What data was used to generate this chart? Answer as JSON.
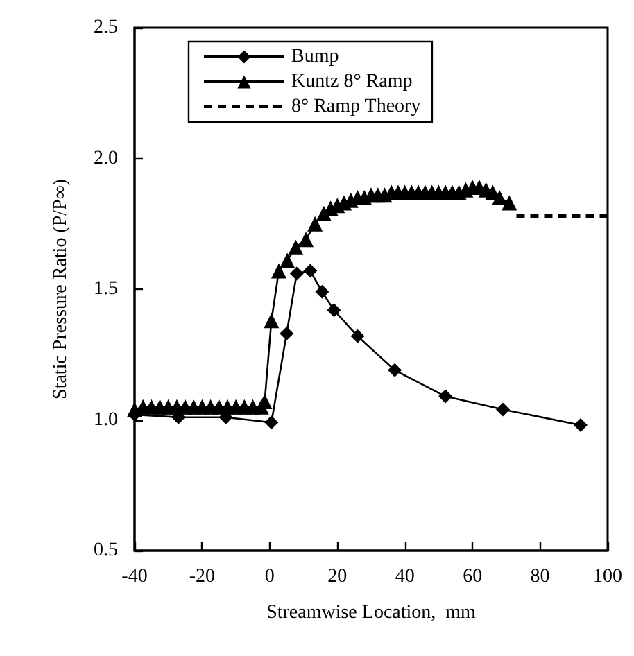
{
  "chart_data": {
    "type": "line",
    "xlabel": "Streamwise Location,  mm",
    "ylabel": "Static Pressure Ratio (P/P∞)",
    "xlim": [
      -40,
      100
    ],
    "xticks": [
      -40,
      -20,
      0,
      20,
      40,
      60,
      80,
      100
    ],
    "ylim": [
      0.5,
      2.5
    ],
    "yticks": [
      0.5,
      {
        "value": 1,
        "label": "1.0"
      },
      1.5,
      {
        "value": 2,
        "label": "2.0"
      },
      2.5
    ],
    "grid": false,
    "legend": "top",
    "series": [
      {
        "name": "Bump",
        "color": "#000000",
        "marker": "diamond",
        "line_style": "solid",
        "x": [
          -40,
          -27,
          -13,
          0.5,
          5,
          8,
          12,
          15.5,
          19,
          26,
          37,
          52,
          69,
          92
        ],
        "values": [
          1.02,
          1.01,
          1.01,
          0.99,
          1.33,
          1.56,
          1.57,
          1.49,
          1.42,
          1.32,
          1.19,
          1.09,
          1.04,
          0.98
        ]
      },
      {
        "name": "Kuntz 8° Ramp",
        "color": "#000000",
        "marker": "triangle",
        "line_style": "solid",
        "x": [
          -40,
          -37.5,
          -35,
          -32.5,
          -30,
          -27.5,
          -25,
          -22.5,
          -20,
          -17.5,
          -15,
          -12.5,
          -10,
          -7.5,
          -5,
          -2.5,
          -1.5,
          0.5,
          2.7,
          5.2,
          7.7,
          10.7,
          13.4,
          16,
          18,
          20,
          22,
          24,
          26,
          28,
          30,
          32,
          34,
          36,
          38,
          40,
          42,
          44,
          46,
          48,
          50,
          52,
          54,
          56,
          58,
          60,
          62,
          64,
          66,
          68,
          70.9
        ],
        "values": [
          1.04,
          1.05,
          1.05,
          1.05,
          1.05,
          1.05,
          1.05,
          1.05,
          1.05,
          1.05,
          1.05,
          1.05,
          1.05,
          1.05,
          1.05,
          1.05,
          1.07,
          1.38,
          1.57,
          1.61,
          1.66,
          1.69,
          1.75,
          1.79,
          1.81,
          1.82,
          1.83,
          1.84,
          1.85,
          1.85,
          1.86,
          1.86,
          1.86,
          1.87,
          1.87,
          1.87,
          1.87,
          1.87,
          1.87,
          1.87,
          1.87,
          1.87,
          1.87,
          1.87,
          1.88,
          1.89,
          1.89,
          1.88,
          1.87,
          1.85,
          1.83
        ]
      },
      {
        "name": "8° Ramp Theory",
        "color": "#000000",
        "marker": "none",
        "line_style": "dashed",
        "x": [
          73,
          100
        ],
        "values": [
          1.78,
          1.78
        ]
      }
    ]
  }
}
